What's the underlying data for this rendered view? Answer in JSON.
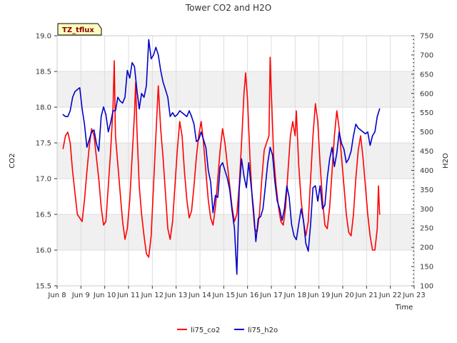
{
  "chart_data": {
    "type": "line",
    "title": "Tower CO2 and H2O",
    "xlabel": "Time",
    "ylabel": "CO2",
    "y2label": "H2O",
    "badge": "TZ_tflux",
    "x_tick_labels": [
      "Jun 8",
      "Jun 9",
      "Jun 10",
      "Jun 11",
      "Jun 12",
      "Jun 13",
      "Jun 14",
      "Jun 15",
      "Jun 16",
      "Jun 17",
      "Jun 18",
      "Jun 19",
      "Jun 20",
      "Jun 21",
      "Jun 22",
      "Jun 23"
    ],
    "xlim": [
      8,
      23
    ],
    "ylim": [
      15.5,
      19.0
    ],
    "y_ticks": [
      15.5,
      16.0,
      16.5,
      17.0,
      17.5,
      18.0,
      18.5,
      19.0
    ],
    "y_tick_labels": [
      "15.5",
      "16.0",
      "16.5",
      "17.0",
      "17.5",
      "18.0",
      "18.5",
      "19.0"
    ],
    "y2lim": [
      100,
      750
    ],
    "y2_ticks": [
      100,
      150,
      200,
      250,
      300,
      350,
      400,
      450,
      500,
      550,
      600,
      650,
      700,
      750
    ],
    "y2_tick_labels": [
      "100",
      "150",
      "200",
      "250",
      "300",
      "350",
      "400",
      "450",
      "500",
      "550",
      "600",
      "650",
      "700",
      "750"
    ],
    "grid": true,
    "legend_position": "bottom",
    "series": [
      {
        "name": "li75_co2",
        "axis": "left",
        "color": "#ff0000",
        "points": [
          [
            8.25,
            17.42
          ],
          [
            8.35,
            17.6
          ],
          [
            8.45,
            17.65
          ],
          [
            8.55,
            17.5
          ],
          [
            8.65,
            17.1
          ],
          [
            8.75,
            16.8
          ],
          [
            8.85,
            16.5
          ],
          [
            8.95,
            16.45
          ],
          [
            9.05,
            16.4
          ],
          [
            9.15,
            16.7
          ],
          [
            9.25,
            17.1
          ],
          [
            9.35,
            17.45
          ],
          [
            9.45,
            17.7
          ],
          [
            9.55,
            17.6
          ],
          [
            9.65,
            17.3
          ],
          [
            9.75,
            17.0
          ],
          [
            9.85,
            16.6
          ],
          [
            9.95,
            16.35
          ],
          [
            10.05,
            16.4
          ],
          [
            10.15,
            16.9
          ],
          [
            10.25,
            17.4
          ],
          [
            10.35,
            18.0
          ],
          [
            10.4,
            18.65
          ],
          [
            10.45,
            17.6
          ],
          [
            10.55,
            17.2
          ],
          [
            10.65,
            16.8
          ],
          [
            10.75,
            16.4
          ],
          [
            10.85,
            16.15
          ],
          [
            10.95,
            16.3
          ],
          [
            11.05,
            16.7
          ],
          [
            11.15,
            17.3
          ],
          [
            11.25,
            17.9
          ],
          [
            11.3,
            18.35
          ],
          [
            11.35,
            17.7
          ],
          [
            11.45,
            16.9
          ],
          [
            11.55,
            16.5
          ],
          [
            11.65,
            16.2
          ],
          [
            11.75,
            15.95
          ],
          [
            11.85,
            15.9
          ],
          [
            11.95,
            16.2
          ],
          [
            12.05,
            16.9
          ],
          [
            12.15,
            17.6
          ],
          [
            12.25,
            18.3
          ],
          [
            12.35,
            17.7
          ],
          [
            12.45,
            17.3
          ],
          [
            12.55,
            16.8
          ],
          [
            12.65,
            16.3
          ],
          [
            12.75,
            16.15
          ],
          [
            12.85,
            16.4
          ],
          [
            12.95,
            16.9
          ],
          [
            13.05,
            17.4
          ],
          [
            13.15,
            17.8
          ],
          [
            13.25,
            17.6
          ],
          [
            13.35,
            17.1
          ],
          [
            13.45,
            16.7
          ],
          [
            13.55,
            16.45
          ],
          [
            13.65,
            16.55
          ],
          [
            13.75,
            16.9
          ],
          [
            13.85,
            17.3
          ],
          [
            13.95,
            17.6
          ],
          [
            14.05,
            17.8
          ],
          [
            14.15,
            17.5
          ],
          [
            14.25,
            17.1
          ],
          [
            14.35,
            16.7
          ],
          [
            14.45,
            16.45
          ],
          [
            14.55,
            16.35
          ],
          [
            14.65,
            16.6
          ],
          [
            14.75,
            17.0
          ],
          [
            14.85,
            17.4
          ],
          [
            14.95,
            17.7
          ],
          [
            15.05,
            17.5
          ],
          [
            15.15,
            17.2
          ],
          [
            15.25,
            16.9
          ],
          [
            15.35,
            16.6
          ],
          [
            15.45,
            16.4
          ],
          [
            15.55,
            16.5
          ],
          [
            15.65,
            16.9
          ],
          [
            15.75,
            17.5
          ],
          [
            15.85,
            18.2
          ],
          [
            15.92,
            18.48
          ],
          [
            16.0,
            18.1
          ],
          [
            16.1,
            17.3
          ],
          [
            16.2,
            16.7
          ],
          [
            16.3,
            16.3
          ],
          [
            16.4,
            16.25
          ],
          [
            16.5,
            16.5
          ],
          [
            16.6,
            17.0
          ],
          [
            16.7,
            17.4
          ],
          [
            16.8,
            17.5
          ],
          [
            16.9,
            17.6
          ],
          [
            16.95,
            18.7
          ],
          [
            17.0,
            18.2
          ],
          [
            17.1,
            17.3
          ],
          [
            17.2,
            16.9
          ],
          [
            17.3,
            16.6
          ],
          [
            17.4,
            16.4
          ],
          [
            17.5,
            16.35
          ],
          [
            17.6,
            16.6
          ],
          [
            17.7,
            17.1
          ],
          [
            17.8,
            17.6
          ],
          [
            17.9,
            17.8
          ],
          [
            18.0,
            17.6
          ],
          [
            18.05,
            17.95
          ],
          [
            18.15,
            17.2
          ],
          [
            18.25,
            16.7
          ],
          [
            18.35,
            16.4
          ],
          [
            18.45,
            16.2
          ],
          [
            18.55,
            16.4
          ],
          [
            18.65,
            17.0
          ],
          [
            18.75,
            17.6
          ],
          [
            18.85,
            18.05
          ],
          [
            18.95,
            17.8
          ],
          [
            19.05,
            17.2
          ],
          [
            19.15,
            16.7
          ],
          [
            19.25,
            16.35
          ],
          [
            19.35,
            16.3
          ],
          [
            19.45,
            16.6
          ],
          [
            19.55,
            17.1
          ],
          [
            19.65,
            17.6
          ],
          [
            19.75,
            17.95
          ],
          [
            19.85,
            17.7
          ],
          [
            19.95,
            17.3
          ],
          [
            20.05,
            16.9
          ],
          [
            20.15,
            16.5
          ],
          [
            20.25,
            16.25
          ],
          [
            20.35,
            16.2
          ],
          [
            20.45,
            16.5
          ],
          [
            20.55,
            17.0
          ],
          [
            20.65,
            17.4
          ],
          [
            20.75,
            17.6
          ],
          [
            20.85,
            17.3
          ],
          [
            20.95,
            16.9
          ],
          [
            21.05,
            16.5
          ],
          [
            21.15,
            16.2
          ],
          [
            21.25,
            16.0
          ],
          [
            21.35,
            16.0
          ],
          [
            21.45,
            16.3
          ],
          [
            21.5,
            16.9
          ],
          [
            21.55,
            16.5
          ]
        ]
      },
      {
        "name": "li75_h2o",
        "axis": "right",
        "color": "#0000cc",
        "points": [
          [
            8.25,
            545
          ],
          [
            8.35,
            540
          ],
          [
            8.45,
            540
          ],
          [
            8.55,
            555
          ],
          [
            8.65,
            590
          ],
          [
            8.75,
            605
          ],
          [
            8.85,
            610
          ],
          [
            8.95,
            615
          ],
          [
            9.05,
            560
          ],
          [
            9.15,
            520
          ],
          [
            9.25,
            460
          ],
          [
            9.35,
            480
          ],
          [
            9.45,
            500
          ],
          [
            9.55,
            505
          ],
          [
            9.65,
            470
          ],
          [
            9.75,
            450
          ],
          [
            9.85,
            540
          ],
          [
            9.95,
            565
          ],
          [
            10.05,
            545
          ],
          [
            10.15,
            500
          ],
          [
            10.25,
            525
          ],
          [
            10.35,
            555
          ],
          [
            10.45,
            555
          ],
          [
            10.55,
            590
          ],
          [
            10.65,
            580
          ],
          [
            10.75,
            575
          ],
          [
            10.85,
            590
          ],
          [
            10.95,
            660
          ],
          [
            11.05,
            640
          ],
          [
            11.15,
            680
          ],
          [
            11.25,
            670
          ],
          [
            11.35,
            610
          ],
          [
            11.45,
            560
          ],
          [
            11.55,
            600
          ],
          [
            11.65,
            590
          ],
          [
            11.75,
            620
          ],
          [
            11.85,
            740
          ],
          [
            11.95,
            690
          ],
          [
            12.05,
            700
          ],
          [
            12.15,
            720
          ],
          [
            12.25,
            700
          ],
          [
            12.35,
            660
          ],
          [
            12.45,
            630
          ],
          [
            12.55,
            610
          ],
          [
            12.65,
            590
          ],
          [
            12.75,
            540
          ],
          [
            12.85,
            550
          ],
          [
            12.95,
            540
          ],
          [
            13.05,
            545
          ],
          [
            13.15,
            555
          ],
          [
            13.25,
            550
          ],
          [
            13.35,
            545
          ],
          [
            13.45,
            540
          ],
          [
            13.55,
            555
          ],
          [
            13.65,
            540
          ],
          [
            13.75,
            520
          ],
          [
            13.85,
            475
          ],
          [
            13.95,
            480
          ],
          [
            14.05,
            500
          ],
          [
            14.15,
            480
          ],
          [
            14.25,
            460
          ],
          [
            14.35,
            400
          ],
          [
            14.45,
            370
          ],
          [
            14.55,
            290
          ],
          [
            14.65,
            335
          ],
          [
            14.75,
            330
          ],
          [
            14.85,
            410
          ],
          [
            14.95,
            420
          ],
          [
            15.05,
            400
          ],
          [
            15.15,
            380
          ],
          [
            15.25,
            350
          ],
          [
            15.35,
            295
          ],
          [
            15.45,
            250
          ],
          [
            15.55,
            130
          ],
          [
            15.65,
            350
          ],
          [
            15.75,
            430
          ],
          [
            15.85,
            385
          ],
          [
            15.95,
            355
          ],
          [
            16.05,
            420
          ],
          [
            16.15,
            360
          ],
          [
            16.25,
            300
          ],
          [
            16.35,
            215
          ],
          [
            16.45,
            275
          ],
          [
            16.55,
            280
          ],
          [
            16.65,
            300
          ],
          [
            16.75,
            360
          ],
          [
            16.85,
            420
          ],
          [
            16.95,
            460
          ],
          [
            17.05,
            440
          ],
          [
            17.15,
            370
          ],
          [
            17.25,
            320
          ],
          [
            17.35,
            300
          ],
          [
            17.45,
            270
          ],
          [
            17.55,
            300
          ],
          [
            17.65,
            360
          ],
          [
            17.75,
            330
          ],
          [
            17.85,
            260
          ],
          [
            17.95,
            230
          ],
          [
            18.05,
            220
          ],
          [
            18.15,
            260
          ],
          [
            18.25,
            300
          ],
          [
            18.35,
            270
          ],
          [
            18.45,
            210
          ],
          [
            18.55,
            190
          ],
          [
            18.65,
            260
          ],
          [
            18.75,
            355
          ],
          [
            18.85,
            360
          ],
          [
            18.95,
            320
          ],
          [
            19.05,
            360
          ],
          [
            19.15,
            300
          ],
          [
            19.25,
            310
          ],
          [
            19.35,
            380
          ],
          [
            19.45,
            430
          ],
          [
            19.55,
            460
          ],
          [
            19.65,
            410
          ],
          [
            19.75,
            445
          ],
          [
            19.85,
            500
          ],
          [
            19.95,
            470
          ],
          [
            20.05,
            455
          ],
          [
            20.15,
            420
          ],
          [
            20.25,
            430
          ],
          [
            20.35,
            450
          ],
          [
            20.45,
            490
          ],
          [
            20.55,
            520
          ],
          [
            20.65,
            510
          ],
          [
            20.75,
            505
          ],
          [
            20.85,
            500
          ],
          [
            20.95,
            495
          ],
          [
            21.05,
            500
          ],
          [
            21.15,
            465
          ],
          [
            21.25,
            490
          ],
          [
            21.35,
            500
          ],
          [
            21.45,
            540
          ],
          [
            21.55,
            560
          ]
        ]
      }
    ]
  }
}
